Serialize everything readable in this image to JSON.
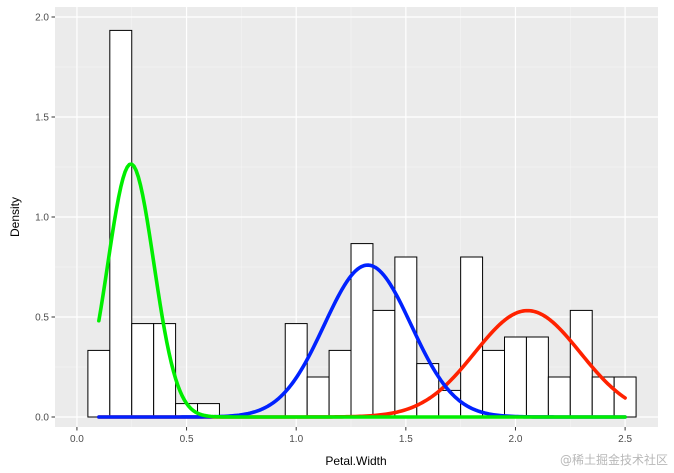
{
  "chart_data": {
    "type": "histogram",
    "xlabel": "Petal.Width",
    "ylabel": "Density",
    "xlim": [
      -0.1,
      2.65
    ],
    "ylim": [
      -0.05,
      2.05
    ],
    "x_ticks": [
      0.0,
      0.5,
      1.0,
      1.5,
      2.0,
      2.5
    ],
    "x_tick_labels": [
      "0.0",
      "0.5",
      "1.0",
      "1.5",
      "2.0",
      "2.5"
    ],
    "y_ticks": [
      0.0,
      0.5,
      1.0,
      1.5,
      2.0
    ],
    "y_tick_labels": [
      "0.0",
      "0.5",
      "1.0",
      "1.5",
      "2.0"
    ],
    "grid": true,
    "panel_background": "#ebebeb",
    "bins": {
      "start": 0.05,
      "width": 0.1,
      "density": [
        0.333,
        1.933,
        0.467,
        0.467,
        0.067,
        0.067,
        0,
        0,
        0,
        0.467,
        0.2,
        0.333,
        0.867,
        0.533,
        0.8,
        0.267,
        0.133,
        0.8,
        0.333,
        0.4,
        0.4,
        0.2,
        0.533,
        0.2,
        0.2
      ]
    },
    "series": [
      {
        "color": "#00ee00",
        "mean": 0.246,
        "sd": 0.105,
        "weight": 0.333,
        "x_range": [
          0.1,
          2.5
        ]
      },
      {
        "color": "#0022ff",
        "mean": 1.326,
        "sd": 0.198,
        "weight": 0.377,
        "x_range": [
          0.1,
          2.5
        ]
      },
      {
        "color": "#ff2200",
        "mean": 2.055,
        "sd": 0.24,
        "weight": 0.32,
        "x_range": [
          0.1,
          2.5
        ]
      }
    ]
  },
  "watermark": "@稀土掘金技术社区"
}
